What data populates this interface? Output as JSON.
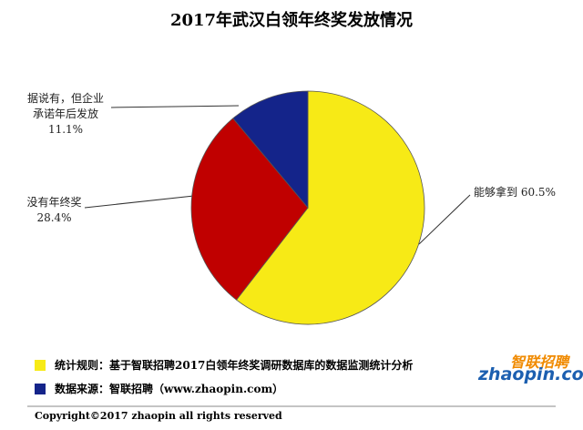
{
  "chart_data": {
    "type": "pie",
    "title": "2017年武汉白领年终奖发放情况",
    "categories": [
      "能够拿到",
      "没有年终奖",
      "据说有，但企业承诺年后发放"
    ],
    "values": [
      60.5,
      28.4,
      11.1
    ],
    "value_labels": [
      "60.5%",
      "28.4%",
      "11.1%"
    ],
    "colors": [
      "#f7ea16",
      "#c00000",
      "#14248a"
    ],
    "notes": [
      {
        "text": "统计规则：基于智联招聘2017白领年终奖调研数据库的数据监测统计分析",
        "color": "#f7ea16"
      },
      {
        "text": "数据来源：智联招聘（www.zhaopin.com）",
        "color": "#14248a"
      }
    ],
    "footer": "Copyright©2017 zhaopin all rights reserved",
    "logo": {
      "name": "智联招聘",
      "site": "zhaopin.com"
    }
  }
}
